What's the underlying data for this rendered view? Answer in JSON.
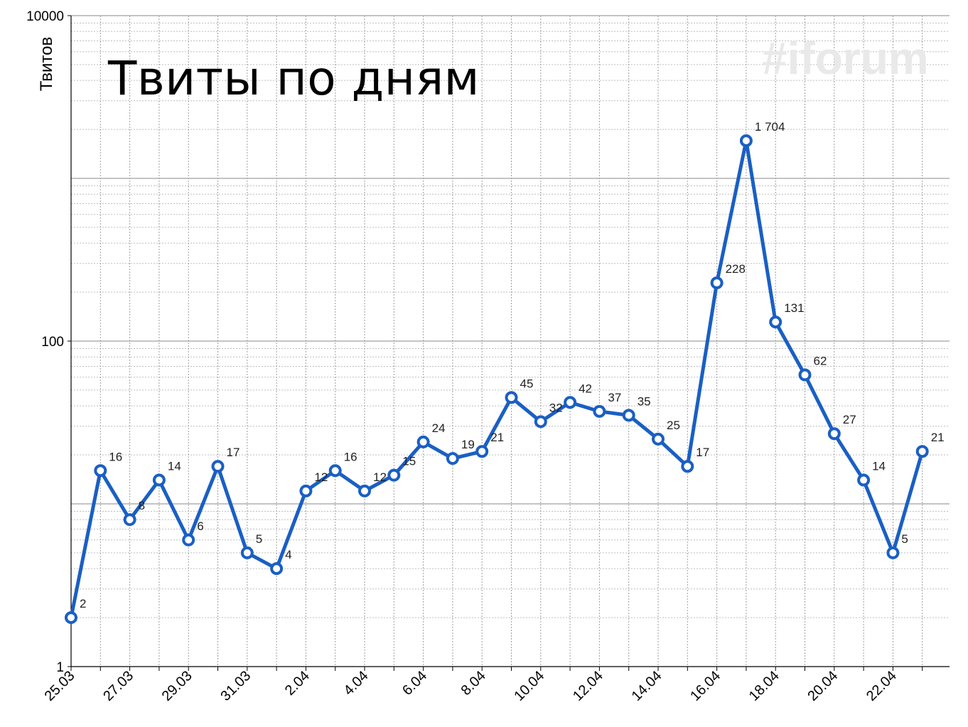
{
  "title": "Твиты по дням",
  "watermark": "#iforum",
  "chart_data": {
    "type": "line",
    "title": "Твиты по дням",
    "xlabel": "",
    "ylabel": "Твитов",
    "yscale": "log",
    "ylim": [
      1,
      10000
    ],
    "ytick_labels": [
      "1",
      "100",
      "10000"
    ],
    "grid": true,
    "legend": "none",
    "x": [
      "25.03",
      "26.03",
      "27.03",
      "28.03",
      "29.03",
      "30.03",
      "31.03",
      "1.04",
      "2.04",
      "3.04",
      "4.04",
      "5.04",
      "6.04",
      "7.04",
      "8.04",
      "9.04",
      "10.04",
      "11.04",
      "12.04",
      "13.04",
      "14.04",
      "15.04",
      "16.04",
      "17.04",
      "18.04",
      "19.04",
      "20.04",
      "21.04",
      "22.04",
      "23.04"
    ],
    "xtick_labels": [
      "25.03",
      "27.03",
      "29.03",
      "31.03",
      "2.04",
      "4.04",
      "6.04",
      "8.04",
      "10.04",
      "12.04",
      "14.04",
      "16.04",
      "18.04",
      "20.04",
      "22.04"
    ],
    "series": [
      {
        "values": [
          2,
          16,
          8,
          14,
          6,
          17,
          5,
          4,
          12,
          16,
          12,
          15,
          24,
          19,
          21,
          45,
          32,
          42,
          37,
          35,
          25,
          17,
          228,
          1704,
          131,
          62,
          27,
          14,
          5,
          21
        ],
        "data_labels": [
          "2",
          "16",
          "8",
          "14",
          "6",
          "17",
          "5",
          "4",
          "12",
          "16",
          "12",
          "15",
          "24",
          "19",
          "21",
          "45",
          "32",
          "42",
          "37",
          "35",
          "25",
          "17",
          "228",
          "1 704",
          "131",
          "62",
          "27",
          "14",
          "5",
          "21"
        ],
        "color": "#1a5fc4"
      }
    ]
  }
}
